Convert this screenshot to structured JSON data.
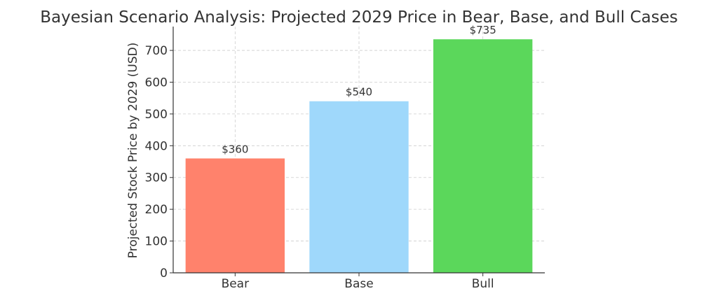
{
  "chart_data": {
    "type": "bar",
    "title": "Bayesian Scenario Analysis: Projected 2029 Price in Bear, Base, and Bull Cases",
    "xlabel": "",
    "ylabel": "Projected Stock Price by 2029 (USD)",
    "categories": [
      "Bear",
      "Base",
      "Bull"
    ],
    "values": [
      360,
      540,
      735
    ],
    "data_labels": [
      "$360",
      "$540",
      "$735"
    ],
    "colors": [
      "#FF826C",
      "#9FD8FB",
      "#5BD75B"
    ],
    "ylim": [
      0,
      775
    ],
    "yticks": [
      0,
      100,
      200,
      300,
      400,
      500,
      600,
      700
    ],
    "grid": true
  }
}
